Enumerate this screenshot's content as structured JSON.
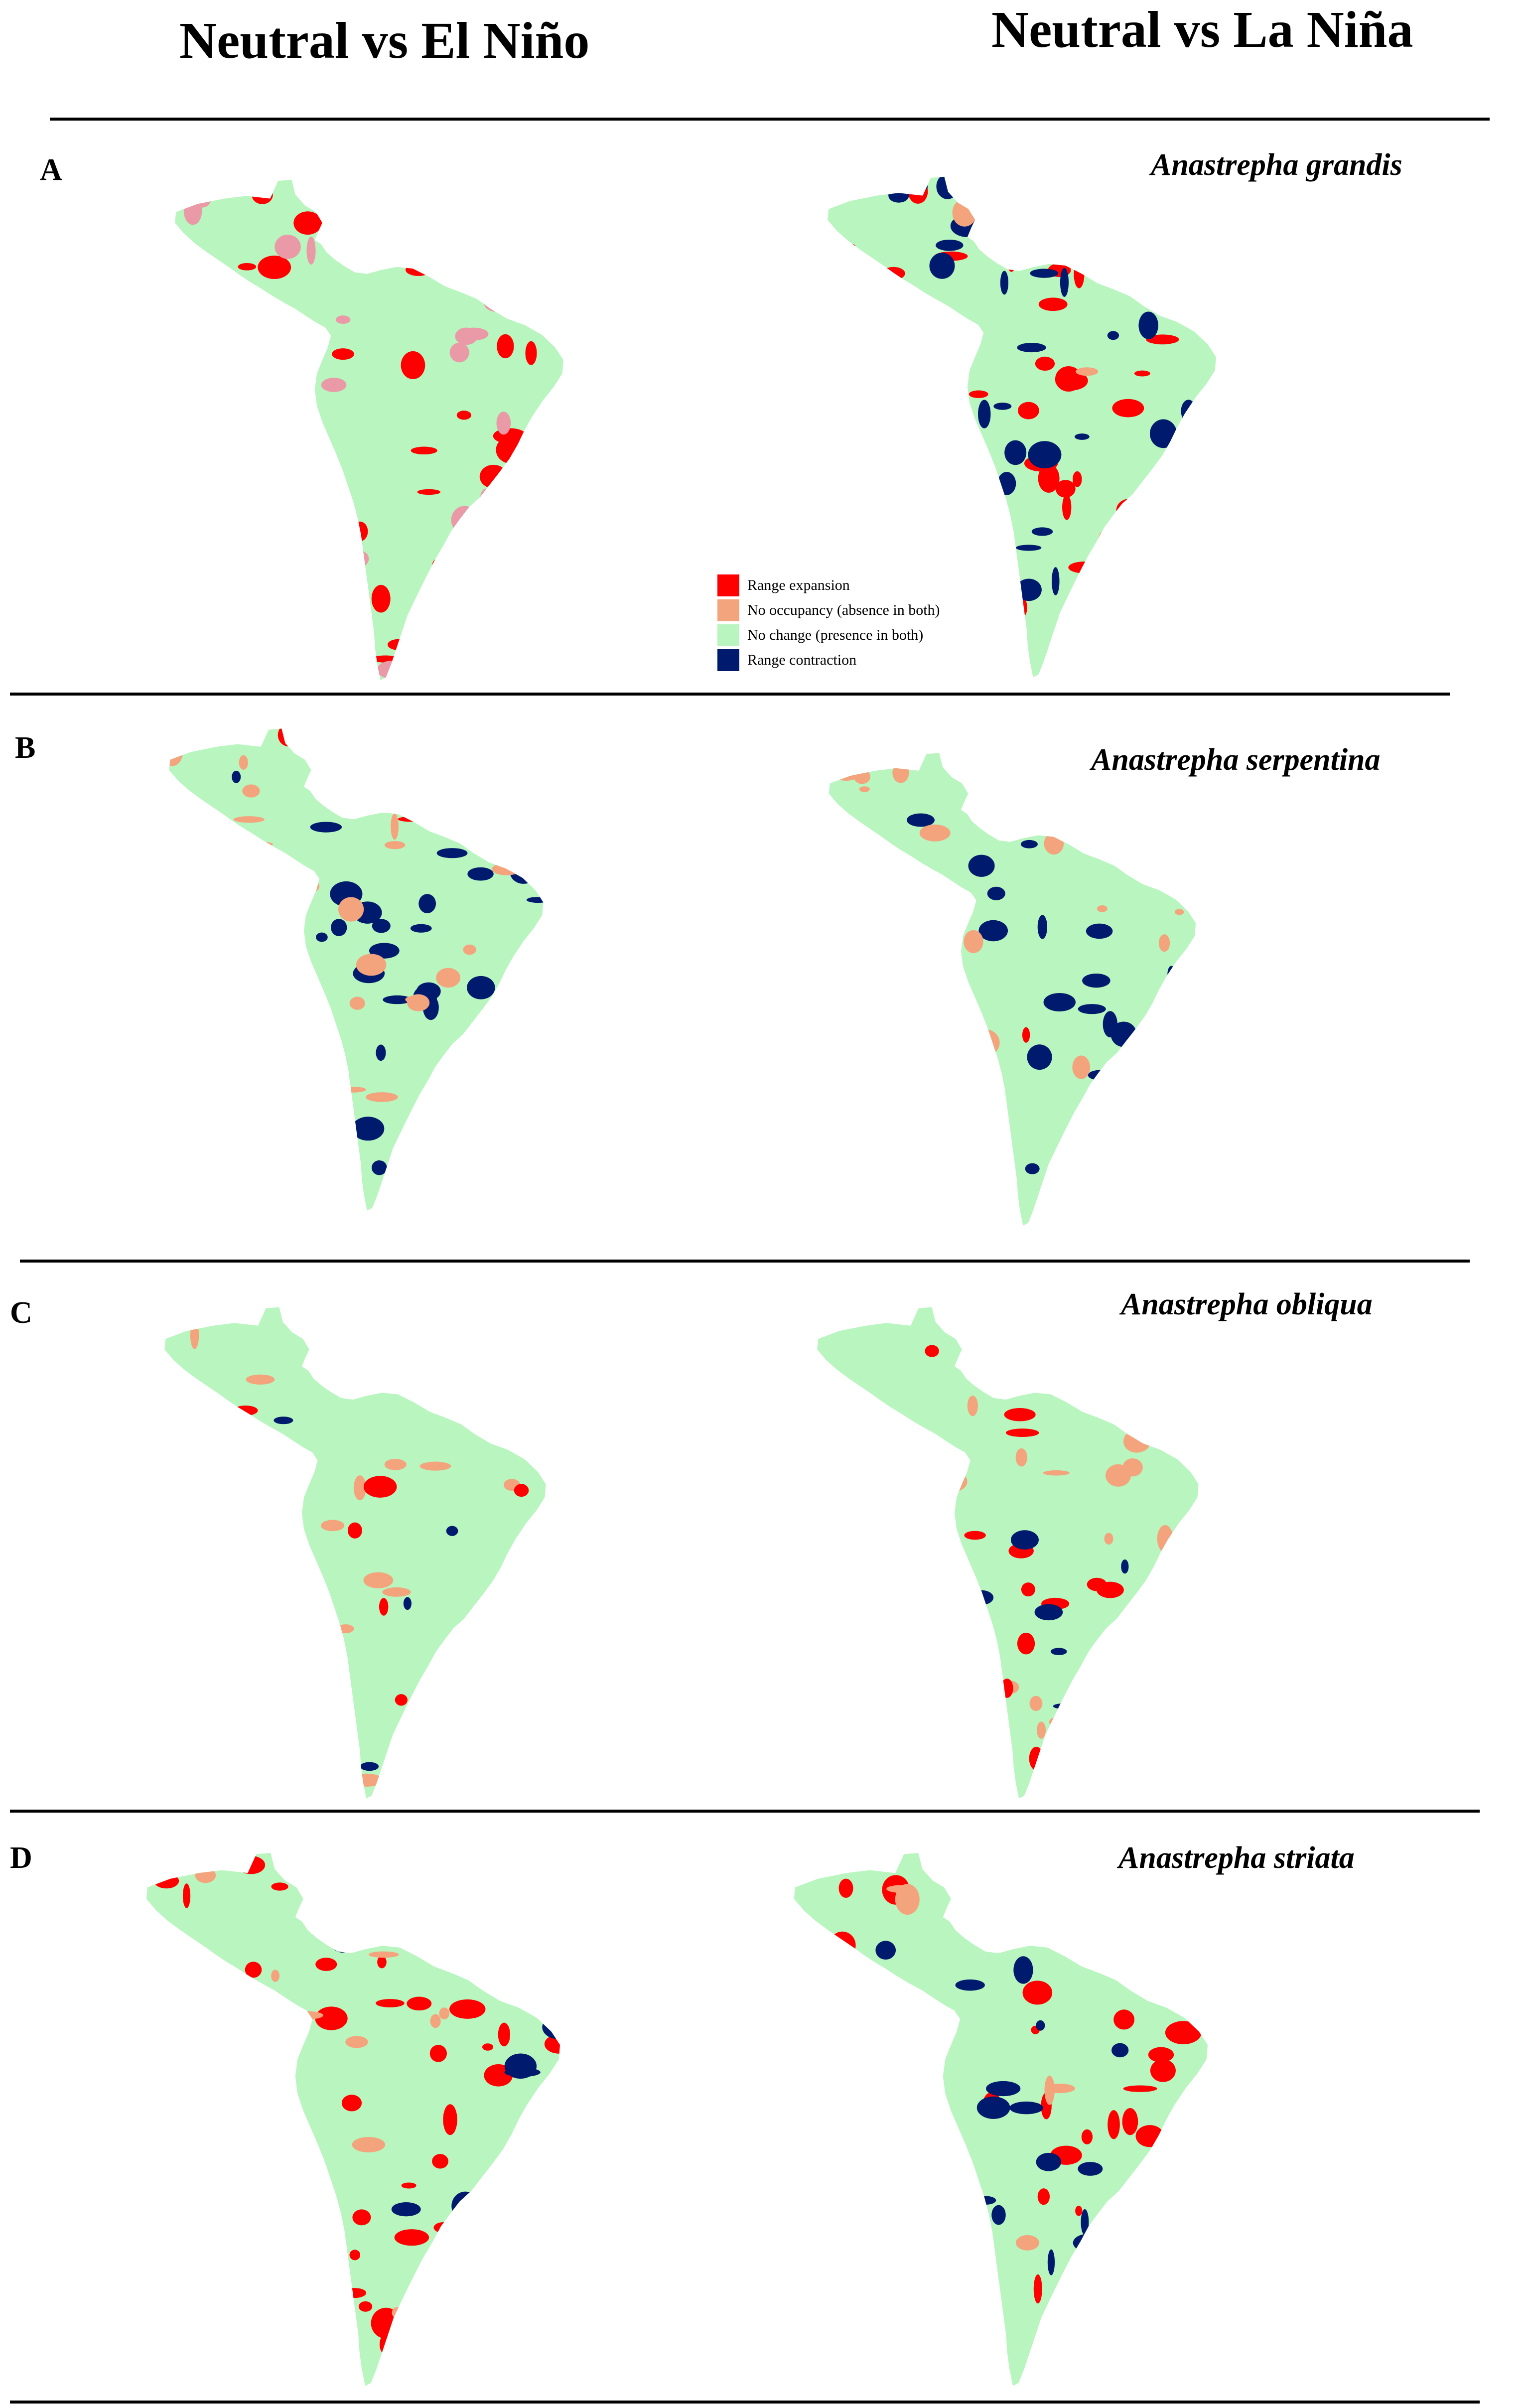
{
  "columns": {
    "left": "Neutral vs El Niño",
    "right": "Neutral vs La Niña"
  },
  "panels": [
    {
      "letter": "A",
      "species": "Anastrepha grandis",
      "left": {
        "base": "#b8f5bf",
        "patches": [
          [
            "#ff0000",
            60
          ],
          [
            "#e99aa6",
            45
          ]
        ]
      },
      "right": {
        "base": "#b8f5bf",
        "patches": [
          [
            "#ff0000",
            55
          ],
          [
            "#001a6e",
            45
          ],
          [
            "#f4a47c",
            10
          ]
        ]
      }
    },
    {
      "letter": "B",
      "species": "Anastrepha serpentina",
      "left": {
        "base": "#b8f5bf",
        "patches": [
          [
            "#001a6e",
            45
          ],
          [
            "#f4a47c",
            35
          ],
          [
            "#ff0000",
            5
          ]
        ]
      },
      "right": {
        "base": "#b8f5bf",
        "patches": [
          [
            "#001a6e",
            50
          ],
          [
            "#f4a47c",
            35
          ],
          [
            "#ff0000",
            6
          ]
        ]
      }
    },
    {
      "letter": "C",
      "species": "Anastrepha obliqua",
      "left": {
        "base": "#b8f5bf",
        "patches": [
          [
            "#f4a47c",
            40
          ],
          [
            "#ff0000",
            14
          ],
          [
            "#001a6e",
            8
          ]
        ]
      },
      "right": {
        "base": "#b8f5bf",
        "patches": [
          [
            "#f4a47c",
            35
          ],
          [
            "#ff0000",
            30
          ],
          [
            "#001a6e",
            8
          ]
        ]
      }
    },
    {
      "letter": "D",
      "species": "Anastrepha striata",
      "left": {
        "base": "#b8f5bf",
        "patches": [
          [
            "#ff0000",
            70
          ],
          [
            "#f4a47c",
            30
          ],
          [
            "#001a6e",
            22
          ]
        ]
      },
      "right": {
        "base": "#b8f5bf",
        "patches": [
          [
            "#ff0000",
            55
          ],
          [
            "#f4a47c",
            30
          ],
          [
            "#001a6e",
            30
          ]
        ]
      }
    }
  ],
  "legend": [
    {
      "label": "Range expansion",
      "color": "#ff0000"
    },
    {
      "label": "No occupancy (absence in both)",
      "color": "#f4a47c"
    },
    {
      "label": "No change (presence in both)",
      "color": "#b8f5bf"
    },
    {
      "label": "Range contraction",
      "color": "#001a6e"
    }
  ]
}
